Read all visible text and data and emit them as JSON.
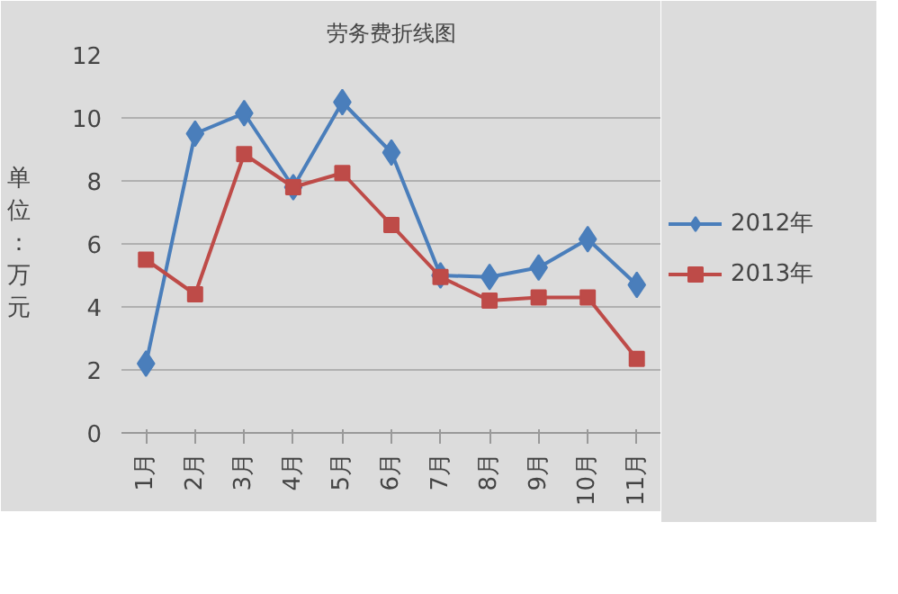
{
  "chart_data": {
    "type": "line",
    "title": "劳务费折线图",
    "ylabel": "单位：万元",
    "categories": [
      "1月",
      "2月",
      "3月",
      "4月",
      "5月",
      "6月",
      "7月",
      "8月",
      "9月",
      "10月",
      "11月"
    ],
    "series": [
      {
        "name": "2012年",
        "color": "#4a7ebb",
        "marker": "diamond",
        "values": [
          2.2,
          9.5,
          10.15,
          7.8,
          10.5,
          8.9,
          5.0,
          4.95,
          5.25,
          6.15,
          4.7
        ]
      },
      {
        "name": "2013年",
        "color": "#be4b48",
        "marker": "square",
        "values": [
          5.5,
          4.4,
          8.85,
          7.8,
          8.25,
          6.6,
          4.95,
          4.2,
          4.3,
          4.3,
          2.35
        ]
      }
    ],
    "ylim": [
      0,
      12
    ],
    "yticks": [
      0,
      2,
      4,
      6,
      8,
      10,
      12
    ],
    "grid": "y",
    "legend": "right"
  }
}
